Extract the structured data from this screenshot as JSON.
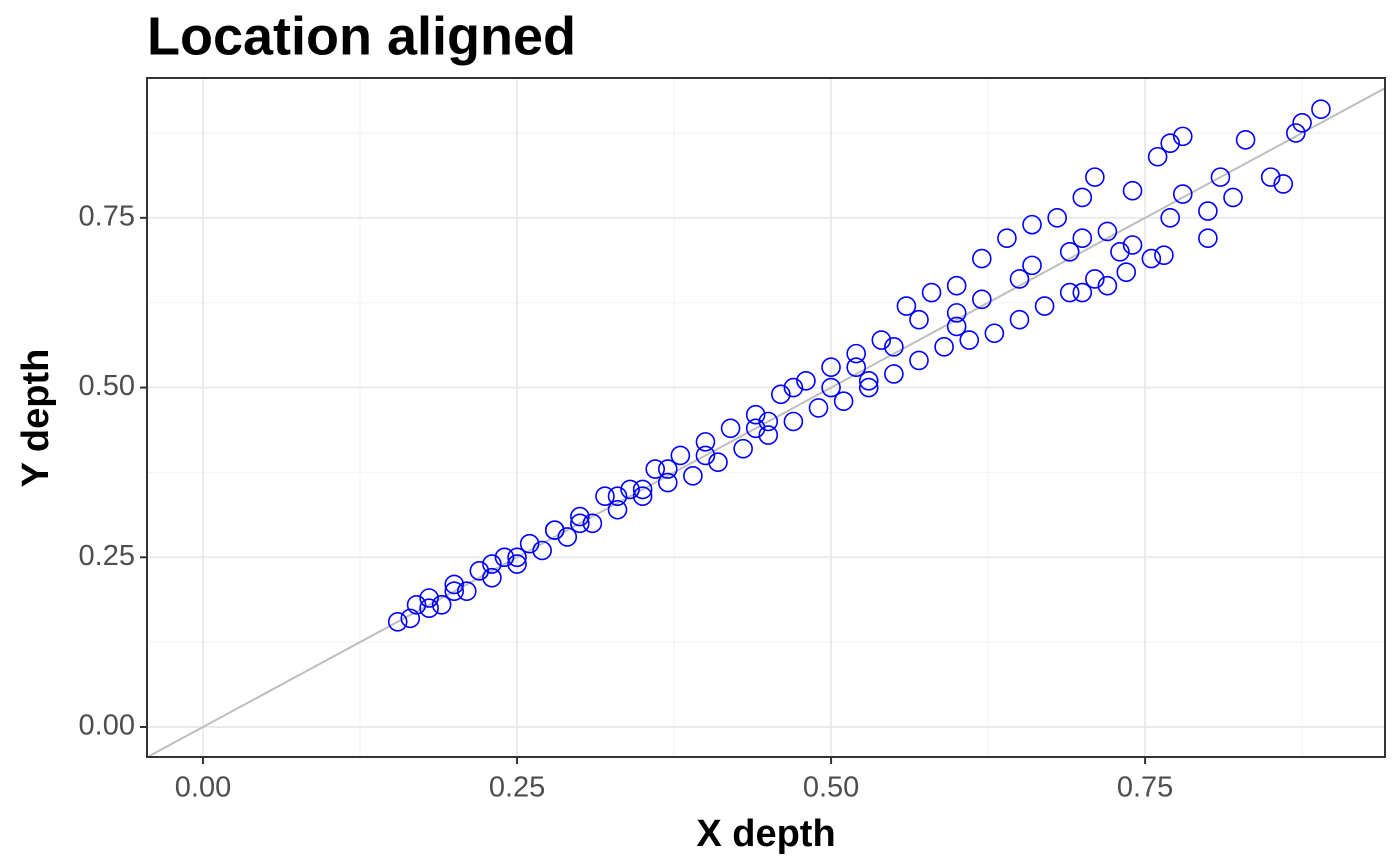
{
  "chart_data": {
    "type": "scatter",
    "title": "Location aligned",
    "x_label": "X depth",
    "y_label": "Y depth",
    "color": "#0000ff",
    "xlim": [
      -0.0446,
      0.941
    ],
    "ylim": [
      -0.0442,
      0.956
    ],
    "xticks": [
      {
        "value": 0,
        "label": "0.00"
      },
      0.25,
      {
        "value": 0.5,
        "label": "0.50"
      },
      0.75
    ],
    "yticks": [
      {
        "value": 0,
        "label": "0.00"
      },
      0.25,
      {
        "value": 0.5,
        "label": "0.50"
      },
      0.75
    ],
    "xminor": [
      0.125,
      0.375,
      0.625,
      0.875
    ],
    "yminor": [
      0.125,
      0.375,
      0.625,
      0.875
    ],
    "grid": true,
    "reference_line": {
      "slope": 1,
      "intercept": 0,
      "color": "#bebebe"
    },
    "x": [
      0.155,
      0.165,
      0.17,
      0.18,
      0.18,
      0.19,
      0.2,
      0.21,
      0.22,
      0.23,
      0.24,
      0.25,
      0.26,
      0.27,
      0.28,
      0.29,
      0.3,
      0.31,
      0.32,
      0.33,
      0.34,
      0.35,
      0.36,
      0.37,
      0.38,
      0.39,
      0.4,
      0.41,
      0.42,
      0.43,
      0.44,
      0.45,
      0.46,
      0.47,
      0.48,
      0.49,
      0.5,
      0.51,
      0.52,
      0.53,
      0.54,
      0.55,
      0.56,
      0.57,
      0.58,
      0.59,
      0.6,
      0.61,
      0.62,
      0.63,
      0.64,
      0.65,
      0.66,
      0.67,
      0.68,
      0.69,
      0.7,
      0.71,
      0.72,
      0.73,
      0.74,
      0.4,
      0.45,
      0.5,
      0.55,
      0.6,
      0.65,
      0.3,
      0.35,
      0.25,
      0.2,
      0.89,
      0.875,
      0.87,
      0.83,
      0.78,
      0.77,
      0.76,
      0.85,
      0.86,
      0.81,
      0.82,
      0.8,
      0.8,
      0.78,
      0.77,
      0.74,
      0.7,
      0.71,
      0.765,
      0.755,
      0.735,
      0.72,
      0.7,
      0.57,
      0.52,
      0.47,
      0.62,
      0.66,
      0.69,
      0.6,
      0.53,
      0.44,
      0.37,
      0.33,
      0.28,
      0.23
    ],
    "values": [
      0.155,
      0.16,
      0.18,
      0.175,
      0.19,
      0.18,
      0.21,
      0.2,
      0.23,
      0.22,
      0.25,
      0.24,
      0.27,
      0.26,
      0.29,
      0.28,
      0.31,
      0.3,
      0.34,
      0.32,
      0.35,
      0.34,
      0.38,
      0.36,
      0.4,
      0.37,
      0.42,
      0.39,
      0.44,
      0.41,
      0.46,
      0.43,
      0.49,
      0.45,
      0.51,
      0.47,
      0.53,
      0.48,
      0.55,
      0.5,
      0.57,
      0.52,
      0.62,
      0.54,
      0.64,
      0.56,
      0.65,
      0.57,
      0.69,
      0.58,
      0.72,
      0.6,
      0.74,
      0.62,
      0.75,
      0.64,
      0.72,
      0.66,
      0.73,
      0.7,
      0.71,
      0.4,
      0.45,
      0.5,
      0.56,
      0.61,
      0.66,
      0.3,
      0.35,
      0.25,
      0.2,
      0.91,
      0.89,
      0.875,
      0.865,
      0.87,
      0.86,
      0.84,
      0.81,
      0.8,
      0.81,
      0.78,
      0.76,
      0.72,
      0.785,
      0.75,
      0.79,
      0.78,
      0.81,
      0.695,
      0.69,
      0.67,
      0.65,
      0.64,
      0.6,
      0.53,
      0.5,
      0.63,
      0.68,
      0.7,
      0.59,
      0.51,
      0.44,
      0.38,
      0.34,
      0.29,
      0.24
    ]
  }
}
